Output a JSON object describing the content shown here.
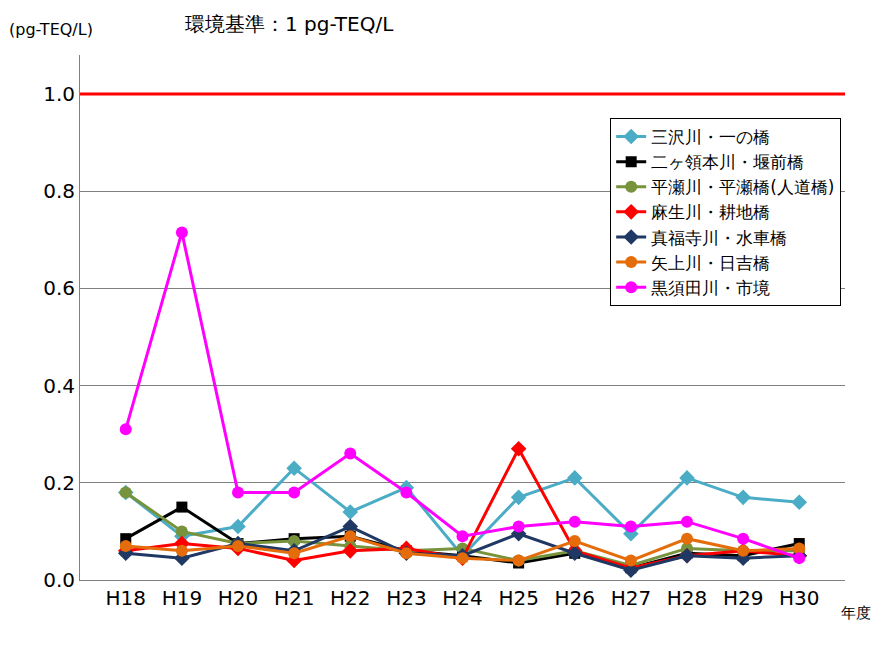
{
  "chart_data": {
    "type": "line",
    "title": "環境基準：1 pg-TEQ/L",
    "y_label": "(pg-TEQ/L)",
    "x_label": "年度",
    "categories": [
      "H18",
      "H19",
      "H20",
      "H21",
      "H22",
      "H23",
      "H24",
      "H25",
      "H26",
      "H27",
      "H28",
      "H29",
      "H30"
    ],
    "series": [
      {
        "name": "三沢川・一の橋",
        "color": "#4bacc6",
        "marker": "diamond",
        "values": [
          0.18,
          0.09,
          0.11,
          0.23,
          0.14,
          0.19,
          0.05,
          0.17,
          0.21,
          0.095,
          0.21,
          0.17,
          0.16
        ]
      },
      {
        "name": "二ヶ領本川・堰前橋",
        "color": "#000000",
        "marker": "square",
        "values": [
          0.085,
          0.15,
          0.075,
          0.085,
          0.09,
          0.06,
          0.05,
          0.035,
          0.055,
          0.025,
          0.055,
          0.05,
          0.075
        ]
      },
      {
        "name": "平瀬川・平瀬橋(人道橋)",
        "color": "#77933c",
        "marker": "circle",
        "values": [
          0.18,
          0.1,
          0.075,
          0.08,
          0.07,
          0.06,
          0.065,
          0.04,
          0.06,
          0.03,
          0.065,
          0.06,
          0.06
        ]
      },
      {
        "name": "麻生川・耕地橋",
        "color": "#ff0000",
        "marker": "diamond",
        "values": [
          0.06,
          0.075,
          0.065,
          0.04,
          0.06,
          0.065,
          0.045,
          0.27,
          0.06,
          0.025,
          0.05,
          0.06,
          0.05
        ]
      },
      {
        "name": "真福寺川・水車橋",
        "color": "#1f3864",
        "marker": "diamond",
        "values": [
          0.055,
          0.045,
          0.075,
          0.06,
          0.11,
          0.055,
          0.05,
          0.095,
          0.055,
          0.02,
          0.05,
          0.045,
          0.05
        ]
      },
      {
        "name": "矢上川・日吉橋",
        "color": "#e46c0a",
        "marker": "circle",
        "values": [
          0.07,
          0.06,
          0.07,
          0.055,
          0.09,
          0.055,
          0.045,
          0.04,
          0.08,
          0.04,
          0.085,
          0.06,
          0.065
        ]
      },
      {
        "name": "黒須田川・市境",
        "color": "#ff00ff",
        "marker": "circle",
        "values": [
          0.31,
          0.715,
          0.18,
          0.18,
          0.26,
          0.18,
          0.09,
          0.11,
          0.12,
          0.11,
          0.12,
          0.085,
          0.045
        ]
      }
    ],
    "standard_line": {
      "value": 1,
      "color": "#ff0000"
    },
    "ylim": [
      0,
      1.08
    ],
    "yticks": [
      {
        "value": 0,
        "label": "0.0"
      },
      0.2,
      0.4,
      0.6,
      0.8,
      {
        "value": 1,
        "label": "1.0"
      }
    ],
    "grid": true,
    "legend": "upper right"
  }
}
